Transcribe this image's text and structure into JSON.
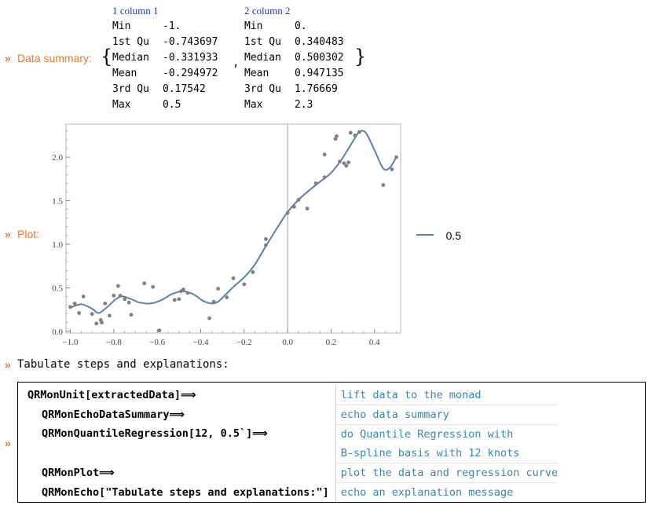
{
  "data_summary": {
    "label": "Data summary:",
    "columns": [
      {
        "header": "1 column 1",
        "rows": [
          [
            "Min",
            "-1."
          ],
          [
            "1st Qu",
            "-0.743697"
          ],
          [
            "Median",
            "-0.331933"
          ],
          [
            "Mean",
            "-0.294972"
          ],
          [
            "3rd Qu",
            "0.17542"
          ],
          [
            "Max",
            "0.5"
          ]
        ]
      },
      {
        "header": "2 column 2",
        "rows": [
          [
            "Min",
            "0."
          ],
          [
            "1st Qu",
            "0.340483"
          ],
          [
            "Median",
            "0.500302"
          ],
          [
            "Mean",
            "0.947135"
          ],
          [
            "3rd Qu",
            "1.76669"
          ],
          [
            "Max",
            "2.3"
          ]
        ]
      }
    ]
  },
  "plot": {
    "label": "Plot:",
    "legend": "0.5",
    "line_color": "#5a7fb0",
    "point_color": "#808080"
  },
  "chart_data": {
    "type": "scatter",
    "title": "",
    "xlabel": "",
    "ylabel": "",
    "xlim": [
      -1.02,
      0.52
    ],
    "ylim": [
      -0.02,
      2.38
    ],
    "xticks": [
      "-1.0",
      "-0.8",
      "-0.6",
      "-0.4",
      "-0.2",
      "0.0",
      "0.2",
      "0.4"
    ],
    "yticks": [
      "0.0",
      "0.5",
      "1.0",
      "1.5",
      "2.0"
    ],
    "legend_position": "right",
    "points": [
      [
        -1.0,
        0.28
      ],
      [
        -0.98,
        0.32
      ],
      [
        -0.96,
        0.21
      ],
      [
        -0.94,
        0.4
      ],
      [
        -0.9,
        0.2
      ],
      [
        -0.88,
        0.09
      ],
      [
        -0.86,
        0.13
      ],
      [
        -0.855,
        0.1
      ],
      [
        -0.84,
        0.32
      ],
      [
        -0.82,
        0.18
      ],
      [
        -0.8,
        0.41
      ],
      [
        -0.78,
        0.52
      ],
      [
        -0.77,
        0.41
      ],
      [
        -0.75,
        0.37
      ],
      [
        -0.73,
        0.33
      ],
      [
        -0.72,
        0.19
      ],
      [
        -0.66,
        0.55
      ],
      [
        -0.62,
        0.51
      ],
      [
        -0.59,
        0.01
      ],
      [
        -0.52,
        0.36
      ],
      [
        -0.5,
        0.37
      ],
      [
        -0.49,
        0.46
      ],
      [
        -0.48,
        0.48
      ],
      [
        -0.46,
        0.44
      ],
      [
        -0.36,
        0.15
      ],
      [
        -0.34,
        0.34
      ],
      [
        -0.32,
        0.49
      ],
      [
        -0.28,
        0.39
      ],
      [
        -0.25,
        0.61
      ],
      [
        -0.2,
        0.54
      ],
      [
        -0.16,
        0.68
      ],
      [
        -0.1,
        1.06
      ],
      [
        -0.1,
        0.99
      ],
      [
        0.0,
        1.36
      ],
      [
        0.03,
        1.43
      ],
      [
        0.05,
        1.51
      ],
      [
        0.09,
        1.41
      ],
      [
        0.13,
        1.7
      ],
      [
        0.17,
        1.77
      ],
      [
        0.17,
        2.03
      ],
      [
        0.22,
        2.21
      ],
      [
        0.225,
        2.24
      ],
      [
        0.24,
        1.95
      ],
      [
        0.26,
        1.93
      ],
      [
        0.27,
        1.9
      ],
      [
        0.28,
        1.94
      ],
      [
        0.29,
        2.28
      ],
      [
        0.31,
        2.25
      ],
      [
        0.33,
        2.29
      ],
      [
        0.44,
        1.68
      ],
      [
        0.48,
        1.86
      ],
      [
        0.5,
        2.0
      ]
    ],
    "series": [
      {
        "name": "0.5",
        "type": "line",
        "x": [
          -1.0,
          -0.95,
          -0.9,
          -0.87,
          -0.83,
          -0.79,
          -0.76,
          -0.72,
          -0.68,
          -0.63,
          -0.58,
          -0.53,
          -0.48,
          -0.43,
          -0.39,
          -0.35,
          -0.32,
          -0.29,
          -0.25,
          -0.2,
          -0.15,
          -0.1,
          -0.05,
          0.0,
          0.05,
          0.1,
          0.15,
          0.2,
          0.25,
          0.3,
          0.33,
          0.36,
          0.4,
          0.44,
          0.47,
          0.5
        ],
        "y": [
          0.27,
          0.31,
          0.26,
          0.21,
          0.28,
          0.37,
          0.4,
          0.37,
          0.33,
          0.32,
          0.36,
          0.43,
          0.46,
          0.42,
          0.35,
          0.32,
          0.34,
          0.41,
          0.51,
          0.62,
          0.77,
          0.98,
          1.18,
          1.37,
          1.51,
          1.62,
          1.72,
          1.82,
          1.98,
          2.18,
          2.29,
          2.28,
          2.08,
          1.87,
          1.88,
          2.0
        ]
      }
    ]
  },
  "tabulate_message": "Tabulate steps and explanations:",
  "steps": [
    {
      "code": "QRMonUnit[extractedData]⟹",
      "explanation": [
        "lift data to the monad"
      ],
      "indent": false
    },
    {
      "code": "QRMonEchoDataSummary⟹",
      "explanation": [
        "echo data summary"
      ],
      "indent": true
    },
    {
      "code": "QRMonQuantileRegression[12, 0.5`]⟹",
      "explanation": [
        "do Quantile Regression with",
        "B-spline basis with 12 knots"
      ],
      "indent": true
    },
    {
      "code": "QRMonPlot⟹",
      "explanation": [
        "plot the data and regression curve"
      ],
      "indent": true
    },
    {
      "code": "QRMonEcho[\"Tabulate steps and explanations:\"]",
      "explanation": [
        "echo an explanation message"
      ],
      "indent": true
    }
  ],
  "chevron": "»",
  "comma": ","
}
